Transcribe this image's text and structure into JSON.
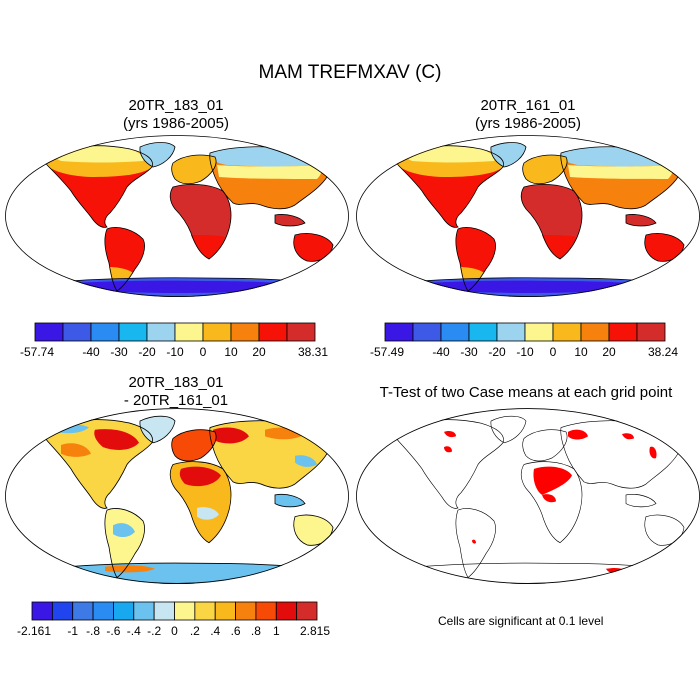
{
  "figure": {
    "title": "MAM TREFMXAV (C)",
    "panels": [
      {
        "title_line1": "20TR_183_01",
        "title_line2": "(yrs 1986-2005)",
        "colorbar": {
          "colors": [
            "#3b17e6",
            "#3d5ae6",
            "#2a8bf2",
            "#18b7ef",
            "#9cd3ee",
            "#fdf58d",
            "#f9b81c",
            "#f7810d",
            "#f71207",
            "#d42b2b"
          ],
          "labels": [
            {
              "text": "-57.74",
              "boundary": 0
            },
            {
              "text": "-40",
              "boundary": 2
            },
            {
              "text": "-30",
              "boundary": 3
            },
            {
              "text": "-20",
              "boundary": 4
            },
            {
              "text": "-10",
              "boundary": 5
            },
            {
              "text": "0",
              "boundary": 6
            },
            {
              "text": "10",
              "boundary": 7
            },
            {
              "text": "20",
              "boundary": 8
            },
            {
              "text": "38.31",
              "boundary": 10
            }
          ]
        }
      },
      {
        "title_line1": "20TR_161_01",
        "title_line2": "(yrs 1986-2005)",
        "colorbar": {
          "colors": [
            "#3b17e6",
            "#3d5ae6",
            "#2a8bf2",
            "#18b7ef",
            "#9cd3ee",
            "#fdf58d",
            "#f9b81c",
            "#f7810d",
            "#f71207",
            "#d42b2b"
          ],
          "labels": [
            {
              "text": "-57.49",
              "boundary": 0
            },
            {
              "text": "-40",
              "boundary": 2
            },
            {
              "text": "-30",
              "boundary": 3
            },
            {
              "text": "-20",
              "boundary": 4
            },
            {
              "text": "-10",
              "boundary": 5
            },
            {
              "text": "0",
              "boundary": 6
            },
            {
              "text": "10",
              "boundary": 7
            },
            {
              "text": "20",
              "boundary": 8
            },
            {
              "text": "38.24",
              "boundary": 10
            }
          ]
        }
      },
      {
        "title_line1": "20TR_183_01",
        "title_line2": "- 20TR_161_01",
        "colorbar": {
          "colors": [
            "#3b17e6",
            "#2045ef",
            "#3d7ae6",
            "#2a8bf2",
            "#18a8ef",
            "#6cc2ee",
            "#c8e6f2",
            "#fdf58d",
            "#fbd644",
            "#f9b81c",
            "#f7810d",
            "#f74a07",
            "#e30c0c",
            "#d42b2b"
          ],
          "labels": [
            {
              "text": "-2.161",
              "boundary": 0
            },
            {
              "text": "-1",
              "boundary": 2
            },
            {
              "text": "-.8",
              "boundary": 3
            },
            {
              "text": "-.6",
              "boundary": 4
            },
            {
              "text": "-.4",
              "boundary": 5
            },
            {
              "text": "-.2",
              "boundary": 6
            },
            {
              "text": "0",
              "boundary": 7
            },
            {
              "text": ".2",
              "boundary": 8
            },
            {
              "text": ".4",
              "boundary": 9
            },
            {
              "text": ".6",
              "boundary": 10
            },
            {
              "text": ".8",
              "boundary": 11
            },
            {
              "text": "1",
              "boundary": 12
            },
            {
              "text": "2.815",
              "boundary": 14
            }
          ]
        }
      },
      {
        "title_line1": "T-Test of two Case means at each grid point",
        "note": "Cells are significant at 0.1 level",
        "significant_color": "#ff0000"
      }
    ]
  }
}
